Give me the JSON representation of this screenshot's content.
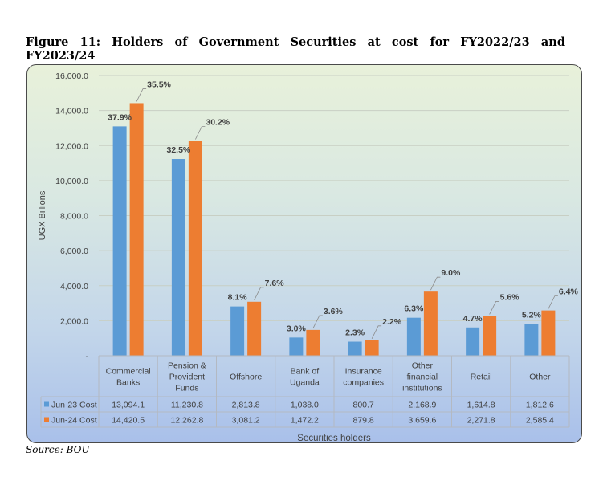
{
  "figure_title": "Figure 11: Holders of Government Securities at cost for FY2022/23 and FY2023/24",
  "source": "Source: BOU",
  "colors": {
    "series1": "#5b9bd5",
    "series2": "#ed7d31",
    "label": "#404040",
    "grid": "#c8cfc4"
  },
  "chart_data": {
    "type": "bar",
    "title": "",
    "xlabel": "Securities holders",
    "ylabel": "UGX Billions",
    "ylim": [
      0,
      16000
    ],
    "yticks": [
      0,
      2000,
      4000,
      6000,
      8000,
      10000,
      12000,
      14000,
      16000
    ],
    "ytick_labels": [
      "-",
      "2,000.0",
      "4,000.0",
      "6,000.0",
      "8,000.0",
      "10,000.0",
      "12,000.0",
      "14,000.0",
      "16,000.0"
    ],
    "categories": [
      "Commercial Banks",
      "Pension & Provident Funds",
      "Offshore",
      "Bank of Uganda",
      "Insurance companies",
      "Other financial institutions",
      "Retail",
      "Other"
    ],
    "category_labels": [
      [
        "Commercial",
        "Banks"
      ],
      [
        "Pension &",
        "Provident",
        "Funds"
      ],
      [
        "Offshore"
      ],
      [
        "Bank of",
        "Uganda"
      ],
      [
        "Insurance",
        "companies"
      ],
      [
        "Other",
        "financial",
        "institutions"
      ],
      [
        "Retail"
      ],
      [
        "Other"
      ]
    ],
    "grid": true,
    "legend": "data-table",
    "series": [
      {
        "name": "Jun-23 Cost",
        "color": "#5b9bd5",
        "values": [
          13094.1,
          11230.8,
          2813.8,
          1038.0,
          800.7,
          2168.9,
          1614.8,
          1812.6
        ],
        "value_labels": [
          "13,094.1",
          "11,230.8",
          "2,813.8",
          "1,038.0",
          "800.7",
          "2,168.9",
          "1,614.8",
          "1,812.6"
        ],
        "share_labels": [
          "37.9%",
          "32.5%",
          "8.1%",
          "3.0%",
          "2.3%",
          "6.3%",
          "4.7%",
          "5.2%"
        ]
      },
      {
        "name": "Jun-24 Cost",
        "color": "#ed7d31",
        "values": [
          14420.5,
          12262.8,
          3081.2,
          1472.2,
          879.8,
          3659.6,
          2271.8,
          2585.4
        ],
        "value_labels": [
          "14,420.5",
          "12,262.8",
          "3,081.2",
          "1,472.2",
          "879.8",
          "3,659.6",
          "2,271.8",
          "2,585.4"
        ],
        "share_labels": [
          "35.5%",
          "30.2%",
          "7.6%",
          "3.6%",
          "2.2%",
          "9.0%",
          "5.6%",
          "6.4%"
        ]
      }
    ]
  }
}
